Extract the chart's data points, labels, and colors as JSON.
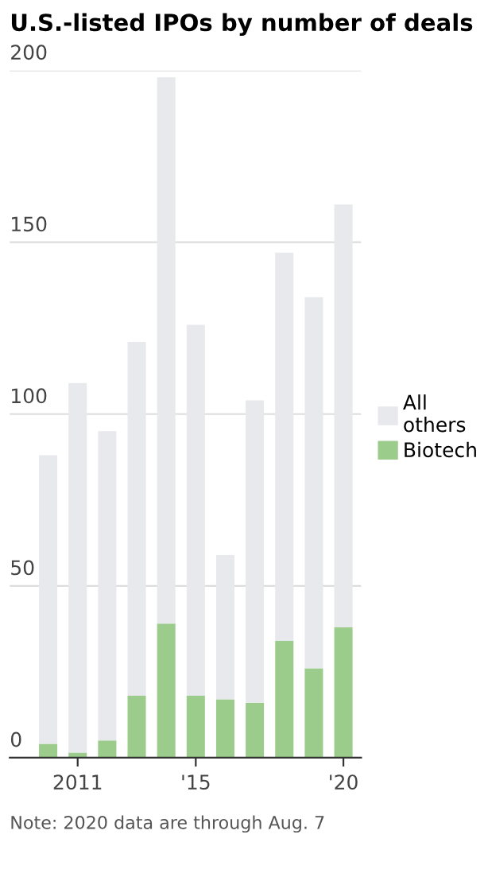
{
  "chart_data": {
    "type": "bar",
    "title": "U.S.-listed IPOs by number of deals",
    "stacked": true,
    "categories": [
      null,
      "2011",
      null,
      null,
      null,
      "'15",
      null,
      null,
      null,
      null,
      "'20"
    ],
    "series": [
      {
        "name": "Biotech",
        "color": "#9ccc8c",
        "values": [
          4,
          1.5,
          5,
          18,
          39,
          18,
          17,
          16,
          34,
          26,
          38
        ]
      },
      {
        "name": "All others",
        "color": "#e8e9ec",
        "values": [
          84,
          107.5,
          90,
          103,
          159,
          108,
          42,
          88,
          113,
          108,
          123
        ]
      }
    ],
    "ylim": [
      0,
      200
    ],
    "yticks": [
      0,
      50,
      100,
      150,
      200
    ],
    "grid": "y",
    "legend": "right",
    "annotations": [
      "Note: 2020 data are through Aug. 7"
    ]
  }
}
